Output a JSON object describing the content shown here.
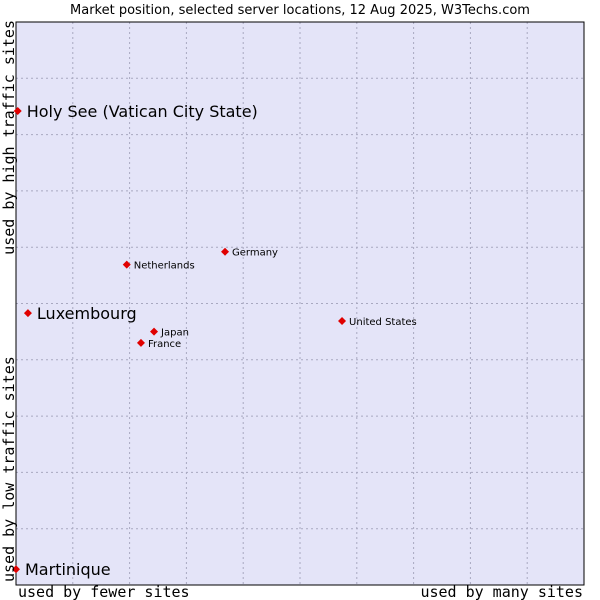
{
  "chart_data": {
    "type": "scatter",
    "title": "Market position, selected server locations, 12 Aug 2025, W3Techs.com",
    "x_axis": {
      "left_label": "used by fewer sites",
      "right_label": "used by many sites",
      "range": [
        0,
        1
      ]
    },
    "y_axis": {
      "top_label": "used by high traffic sites",
      "bottom_label": "used by low traffic sites",
      "range": [
        0,
        1
      ]
    },
    "grid": true,
    "colors": {
      "plot_bg": "#e4e4f8",
      "grid": "#a8a8c0",
      "marker": "#e00000",
      "border": "#000000"
    },
    "points": [
      {
        "name": "Holy See (Vatican City State)",
        "x": 0.003,
        "y": 0.842,
        "highlight": true
      },
      {
        "name": "Germany",
        "x": 0.368,
        "y": 0.592,
        "highlight": false
      },
      {
        "name": "Netherlands",
        "x": 0.195,
        "y": 0.569,
        "highlight": false
      },
      {
        "name": "Luxembourg",
        "x": 0.021,
        "y": 0.483,
        "highlight": true
      },
      {
        "name": "United States",
        "x": 0.574,
        "y": 0.469,
        "highlight": false
      },
      {
        "name": "Japan",
        "x": 0.243,
        "y": 0.45,
        "highlight": false
      },
      {
        "name": "France",
        "x": 0.22,
        "y": 0.43,
        "highlight": false
      },
      {
        "name": "Martinique",
        "x": 0.0,
        "y": 0.028,
        "highlight": true
      }
    ]
  }
}
